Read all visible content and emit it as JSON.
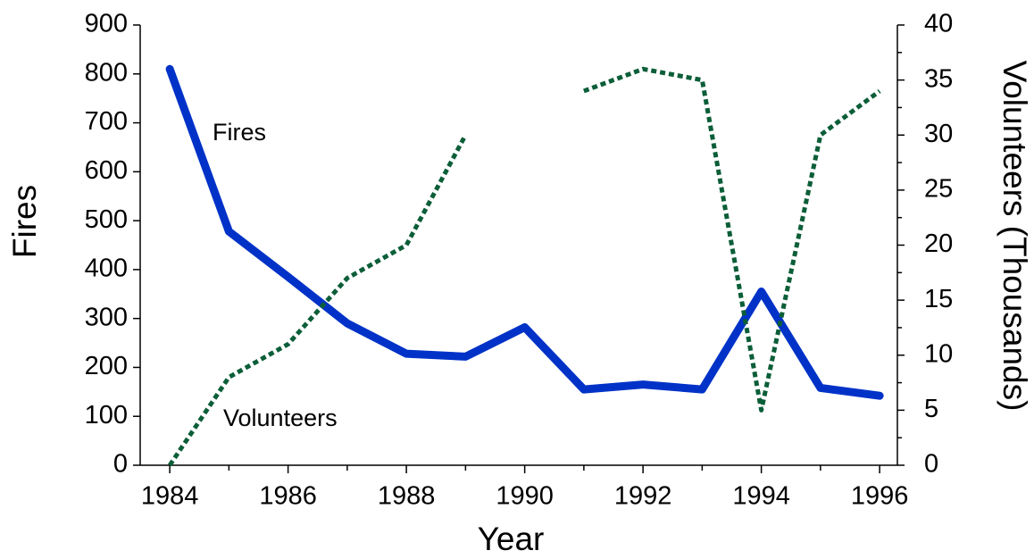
{
  "chart_data": {
    "type": "line",
    "x": [
      1984,
      1985,
      1986,
      1987,
      1988,
      1989,
      1990,
      1991,
      1992,
      1993,
      1994,
      1995,
      1996
    ],
    "series": [
      {
        "name": "Fires",
        "color": "#0032c8",
        "values": [
          810,
          478,
          385,
          290,
          228,
          222,
          282,
          155,
          165,
          155,
          355,
          158,
          142
        ]
      },
      {
        "name": "Volunteers",
        "color": "#0b5e38",
        "axis": "y2",
        "values": [
          0,
          8,
          11,
          17,
          20,
          30,
          null,
          34,
          36,
          35,
          5,
          30,
          34
        ]
      }
    ],
    "xlabel": "Year",
    "ylabel": "Fires",
    "y2label": "Volunteers (Thousands)",
    "xlim": [
      1983.5,
      1996.3
    ],
    "xticks": [
      1984,
      1986,
      1988,
      1990,
      1992,
      1994,
      1996
    ],
    "ylim": [
      0,
      900
    ],
    "yticks": [
      0,
      100,
      200,
      300,
      400,
      500,
      600,
      700,
      800,
      900
    ],
    "y2lim": [
      0,
      40
    ],
    "y2ticks": [
      0,
      5,
      10,
      15,
      20,
      25,
      30,
      35,
      40
    ]
  }
}
